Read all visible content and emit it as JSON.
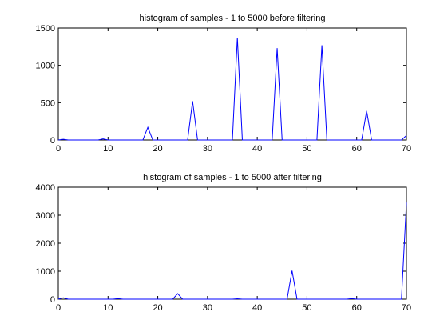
{
  "chart_data": [
    {
      "type": "line",
      "title": "histogram of samples - 1 to 5000 before filtering",
      "xlabel": "",
      "ylabel": "",
      "xlim": [
        0,
        70
      ],
      "ylim": [
        0,
        1500
      ],
      "grid": false,
      "xticks": [
        "0",
        "10",
        "20",
        "30",
        "40",
        "50",
        "60",
        "70"
      ],
      "yticks": [
        "0",
        "500",
        "1000",
        "1500"
      ],
      "series": [
        {
          "color": "#0000ff",
          "x": [
            0,
            1,
            2,
            8,
            9,
            10,
            17,
            18,
            19,
            26,
            27,
            28,
            35,
            36,
            37,
            43,
            44,
            45,
            52,
            53,
            54,
            61,
            62,
            63,
            69,
            70
          ],
          "y": [
            0,
            10,
            0,
            0,
            15,
            0,
            0,
            170,
            0,
            0,
            520,
            0,
            0,
            1370,
            0,
            0,
            1230,
            0,
            0,
            1270,
            0,
            0,
            390,
            0,
            0,
            60
          ]
        }
      ]
    },
    {
      "type": "line",
      "title": "histogram of samples - 1 to 5000 after filtering",
      "xlabel": "",
      "ylabel": "",
      "xlim": [
        0,
        70
      ],
      "ylim": [
        0,
        4000
      ],
      "grid": false,
      "xticks": [
        "0",
        "10",
        "20",
        "30",
        "40",
        "50",
        "60",
        "70"
      ],
      "yticks": [
        "0",
        "1000",
        "2000",
        "3000",
        "4000"
      ],
      "series": [
        {
          "color": "#0000ff",
          "x": [
            0,
            1,
            2,
            11,
            12,
            13,
            23,
            24,
            25,
            35,
            36,
            37,
            46,
            47,
            48,
            58,
            59,
            60,
            69,
            70
          ],
          "y": [
            0,
            50,
            0,
            0,
            20,
            0,
            0,
            200,
            0,
            0,
            15,
            0,
            0,
            1020,
            0,
            0,
            20,
            0,
            0,
            3450
          ]
        }
      ]
    }
  ]
}
